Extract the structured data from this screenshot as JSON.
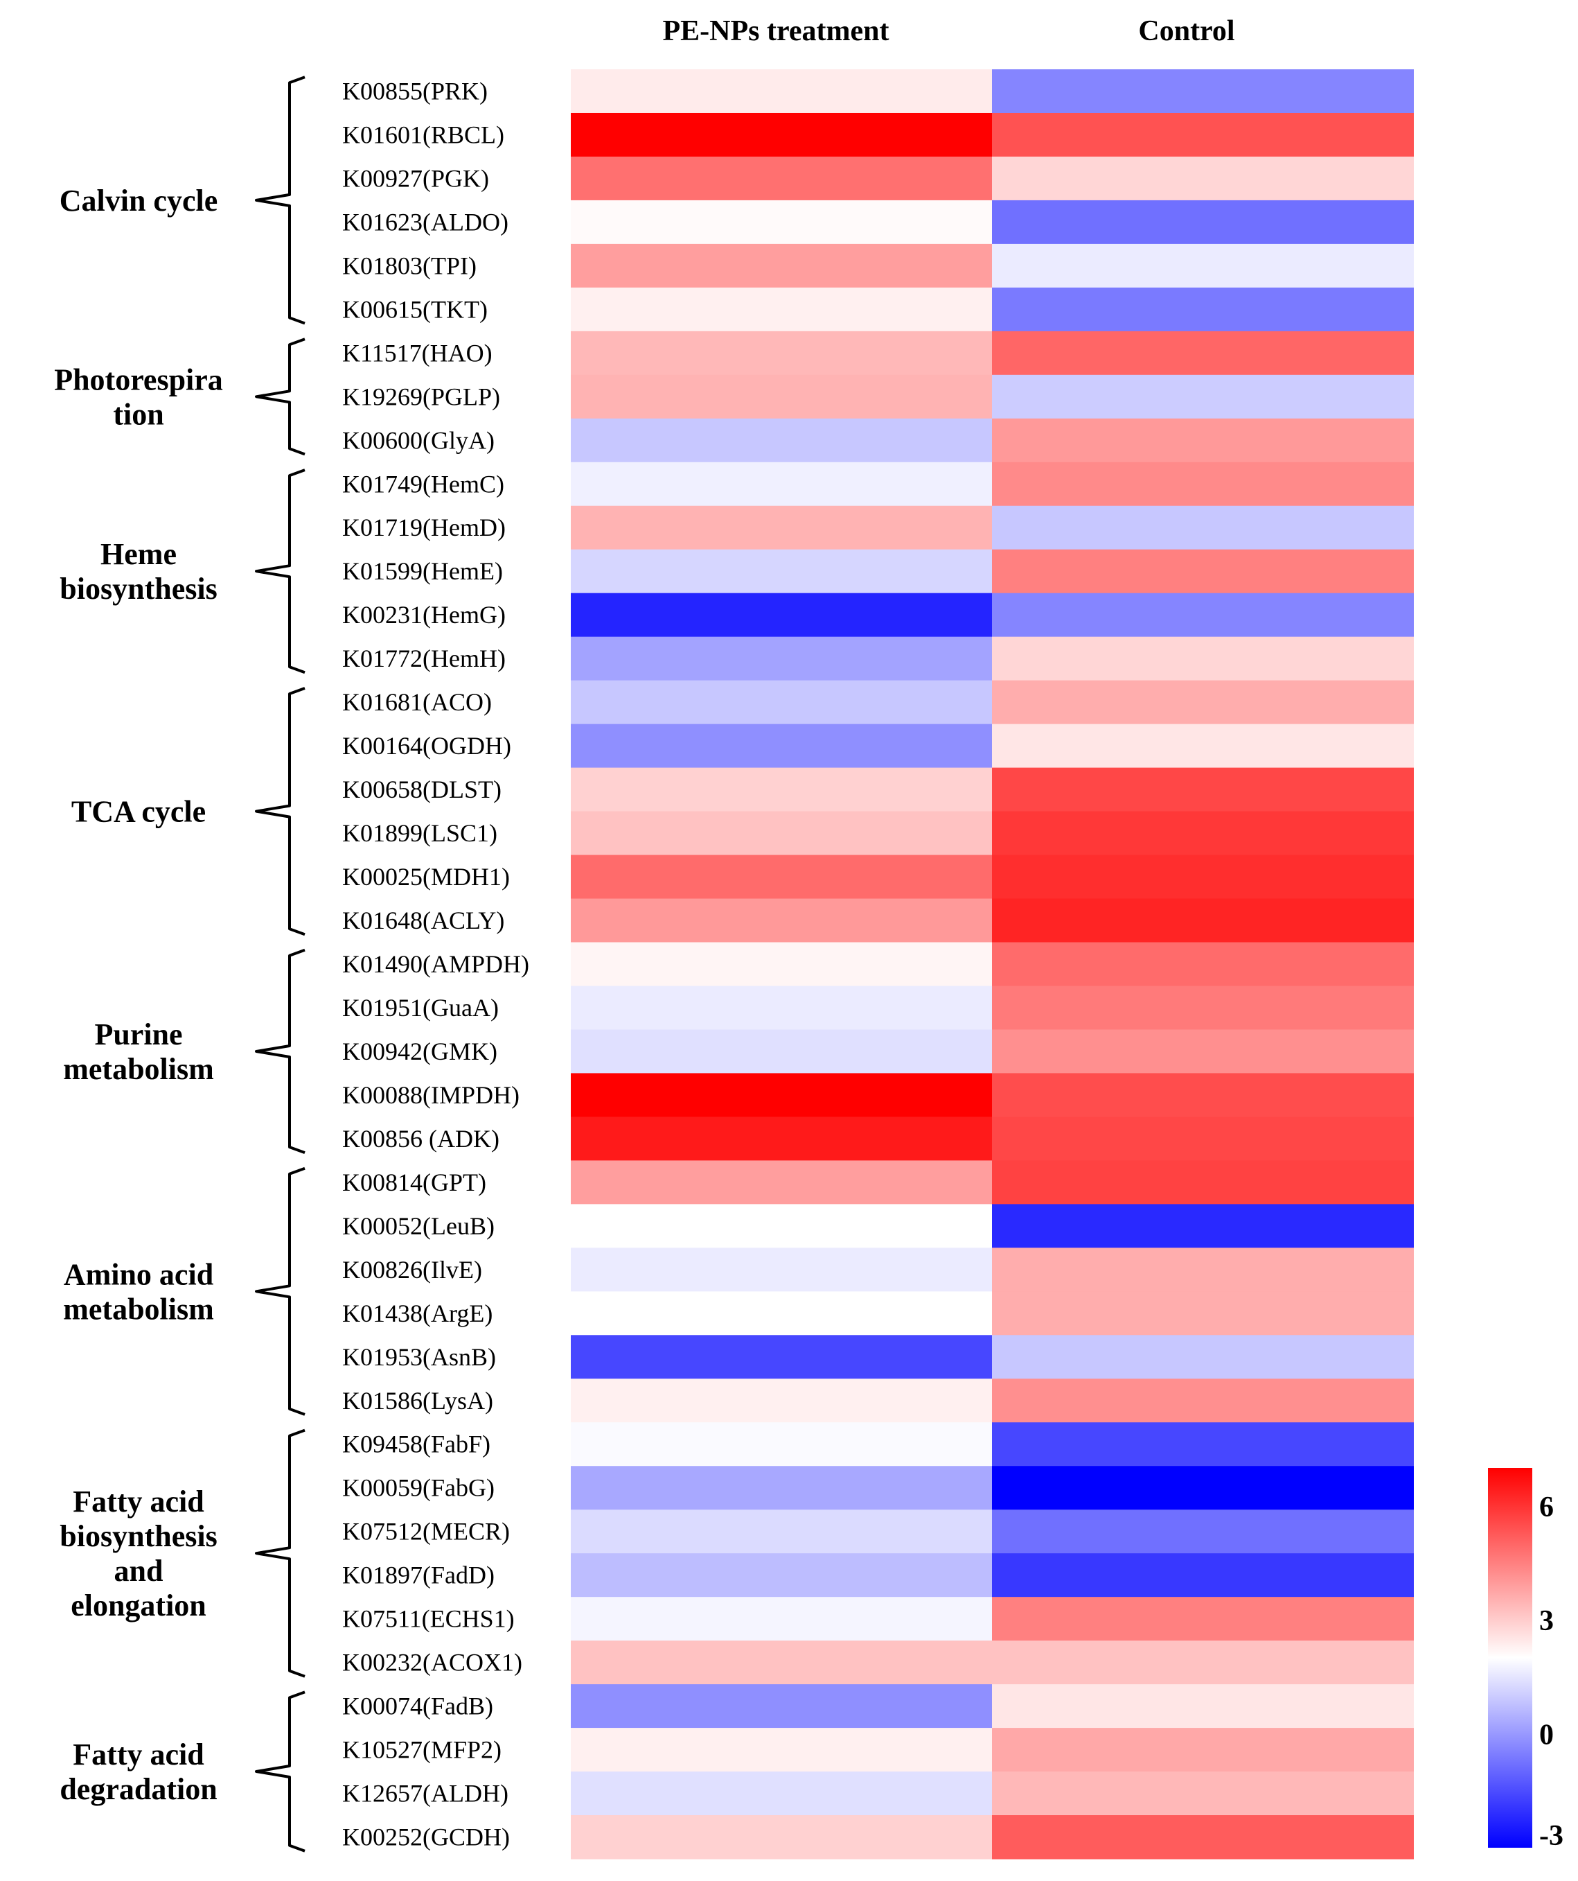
{
  "chart_data": {
    "type": "heatmap",
    "columns": [
      "PE-NPs treatment",
      "Control"
    ],
    "rows": [
      {
        "label": "K00855(PRK)",
        "values": [
          2.4,
          -0.4
        ]
      },
      {
        "label": "K01601(RBCL)",
        "values": [
          7.0,
          5.4
        ]
      },
      {
        "label": "K00927(PGK)",
        "values": [
          4.8,
          2.8
        ]
      },
      {
        "label": "K01623(ALDO)",
        "values": [
          2.1,
          -0.8
        ]
      },
      {
        "label": "K01803(TPI)",
        "values": [
          3.9,
          1.6
        ]
      },
      {
        "label": "K00615(TKT)",
        "values": [
          2.3,
          -0.6
        ]
      },
      {
        "label": "K11517(HAO)",
        "values": [
          3.4,
          5.0
        ]
      },
      {
        "label": "K19269(PGLP)",
        "values": [
          3.5,
          1.0
        ]
      },
      {
        "label": "K00600(GlyA)",
        "values": [
          0.9,
          4.0
        ]
      },
      {
        "label": "K01749(HemC)",
        "values": [
          1.7,
          4.3
        ]
      },
      {
        "label": "K01719(HemD)",
        "values": [
          3.5,
          0.9
        ]
      },
      {
        "label": "K01599(HemE)",
        "values": [
          1.2,
          4.5
        ]
      },
      {
        "label": "K00231(HemG)",
        "values": [
          -2.3,
          -0.4
        ]
      },
      {
        "label": "K01772(HemH)",
        "values": [
          0.2,
          2.8
        ]
      },
      {
        "label": "K01681(ACO)",
        "values": [
          0.9,
          3.6
        ]
      },
      {
        "label": "K00164(OGDH)",
        "values": [
          -0.2,
          2.5
        ]
      },
      {
        "label": "K00658(DLST)",
        "values": [
          2.9,
          5.6
        ]
      },
      {
        "label": "K01899(LSC1)",
        "values": [
          3.2,
          5.9
        ]
      },
      {
        "label": "K00025(MDH1)",
        "values": [
          4.9,
          6.1
        ]
      },
      {
        "label": "K01648(ACLY)",
        "values": [
          4.0,
          6.3
        ]
      },
      {
        "label": "K01490(AMPDH)",
        "values": [
          2.2,
          4.9
        ]
      },
      {
        "label": "K01951(GuaA)",
        "values": [
          1.6,
          4.6
        ]
      },
      {
        "label": "K00942(GMK)",
        "values": [
          1.4,
          4.2
        ]
      },
      {
        "label": "K00088(IMPDH)",
        "values": [
          7.0,
          5.5
        ]
      },
      {
        "label": "K00856 (ADK)",
        "values": [
          6.5,
          5.6
        ]
      },
      {
        "label": "K00814(GPT)",
        "values": [
          3.9,
          5.7
        ]
      },
      {
        "label": "K00052(LeuB)",
        "values": [
          2.0,
          -2.2
        ]
      },
      {
        "label": "K00826(IlvE)",
        "values": [
          1.6,
          3.6
        ]
      },
      {
        "label": "K01438(ArgE)",
        "values": [
          2.0,
          3.6
        ]
      },
      {
        "label": "K01953(AsnB)",
        "values": [
          -1.6,
          0.9
        ]
      },
      {
        "label": "K01586(LysA)",
        "values": [
          2.3,
          4.2
        ]
      },
      {
        "label": "K09458(FabF)",
        "values": [
          1.9,
          -1.6
        ]
      },
      {
        "label": "K00059(FabG)",
        "values": [
          0.3,
          -3.0
        ]
      },
      {
        "label": "K07512(MECR)",
        "values": [
          1.3,
          -0.8
        ]
      },
      {
        "label": "K01897(FadD)",
        "values": [
          0.7,
          -1.9
        ]
      },
      {
        "label": "K07511(ECHS1)",
        "values": [
          1.8,
          4.5
        ]
      },
      {
        "label": "K00232(ACOX1)",
        "values": [
          3.2,
          3.2
        ]
      },
      {
        "label": "K00074(FadB)",
        "values": [
          -0.2,
          2.5
        ]
      },
      {
        "label": "K10527(MFP2)",
        "values": [
          2.3,
          3.7
        ]
      },
      {
        "label": "K12657(ALDH)",
        "values": [
          1.4,
          3.4
        ]
      },
      {
        "label": "K00252(GCDH)",
        "values": [
          2.9,
          5.2
        ]
      }
    ],
    "groups": [
      {
        "lines": [
          "Calvin cycle"
        ],
        "start": 0,
        "end": 5
      },
      {
        "lines": [
          "Photorespira",
          "tion"
        ],
        "start": 6,
        "end": 8
      },
      {
        "lines": [
          "Heme",
          "biosynthesis"
        ],
        "start": 9,
        "end": 13
      },
      {
        "lines": [
          "TCA cycle"
        ],
        "start": 14,
        "end": 19
      },
      {
        "lines": [
          "Purine",
          "metabolism"
        ],
        "start": 20,
        "end": 24
      },
      {
        "lines": [
          "Amino acid",
          "metabolism"
        ],
        "start": 25,
        "end": 30
      },
      {
        "lines": [
          "Fatty acid",
          "biosynthesis",
          "and",
          "elongation"
        ],
        "start": 31,
        "end": 36
      },
      {
        "lines": [
          "Fatty acid",
          "degradation"
        ],
        "start": 37,
        "end": 40
      }
    ],
    "color_scale": {
      "min": -3,
      "mid": 2,
      "max": 7,
      "low_color": "#0000ff",
      "mid_color": "#ffffff",
      "high_color": "#ff0000",
      "ticks": [
        6,
        3,
        0,
        -3
      ]
    }
  }
}
